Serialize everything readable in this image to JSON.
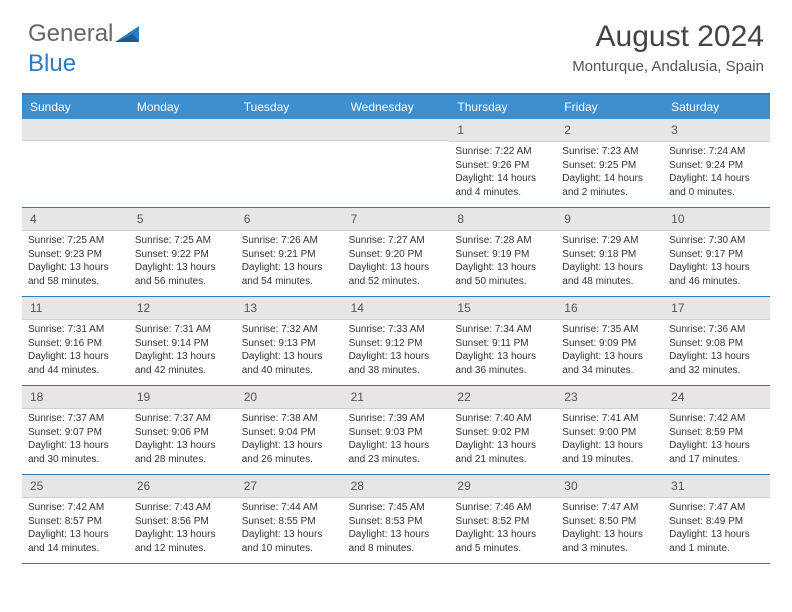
{
  "logo": {
    "text1": "General",
    "text2": "Blue"
  },
  "title": "August 2024",
  "location": "Monturque, Andalusia, Spain",
  "colors": {
    "header_bg": "#3d8fcf",
    "border": "#2f7bbf",
    "numrow_bg": "#e6e6e6",
    "text": "#333333"
  },
  "day_names": [
    "Sunday",
    "Monday",
    "Tuesday",
    "Wednesday",
    "Thursday",
    "Friday",
    "Saturday"
  ],
  "weeks": [
    [
      null,
      null,
      null,
      null,
      {
        "n": "1",
        "sr": "7:22 AM",
        "ss": "9:26 PM",
        "dl": "14 hours and 4 minutes."
      },
      {
        "n": "2",
        "sr": "7:23 AM",
        "ss": "9:25 PM",
        "dl": "14 hours and 2 minutes."
      },
      {
        "n": "3",
        "sr": "7:24 AM",
        "ss": "9:24 PM",
        "dl": "14 hours and 0 minutes."
      }
    ],
    [
      {
        "n": "4",
        "sr": "7:25 AM",
        "ss": "9:23 PM",
        "dl": "13 hours and 58 minutes."
      },
      {
        "n": "5",
        "sr": "7:25 AM",
        "ss": "9:22 PM",
        "dl": "13 hours and 56 minutes."
      },
      {
        "n": "6",
        "sr": "7:26 AM",
        "ss": "9:21 PM",
        "dl": "13 hours and 54 minutes."
      },
      {
        "n": "7",
        "sr": "7:27 AM",
        "ss": "9:20 PM",
        "dl": "13 hours and 52 minutes."
      },
      {
        "n": "8",
        "sr": "7:28 AM",
        "ss": "9:19 PM",
        "dl": "13 hours and 50 minutes."
      },
      {
        "n": "9",
        "sr": "7:29 AM",
        "ss": "9:18 PM",
        "dl": "13 hours and 48 minutes."
      },
      {
        "n": "10",
        "sr": "7:30 AM",
        "ss": "9:17 PM",
        "dl": "13 hours and 46 minutes."
      }
    ],
    [
      {
        "n": "11",
        "sr": "7:31 AM",
        "ss": "9:16 PM",
        "dl": "13 hours and 44 minutes."
      },
      {
        "n": "12",
        "sr": "7:31 AM",
        "ss": "9:14 PM",
        "dl": "13 hours and 42 minutes."
      },
      {
        "n": "13",
        "sr": "7:32 AM",
        "ss": "9:13 PM",
        "dl": "13 hours and 40 minutes."
      },
      {
        "n": "14",
        "sr": "7:33 AM",
        "ss": "9:12 PM",
        "dl": "13 hours and 38 minutes."
      },
      {
        "n": "15",
        "sr": "7:34 AM",
        "ss": "9:11 PM",
        "dl": "13 hours and 36 minutes."
      },
      {
        "n": "16",
        "sr": "7:35 AM",
        "ss": "9:09 PM",
        "dl": "13 hours and 34 minutes."
      },
      {
        "n": "17",
        "sr": "7:36 AM",
        "ss": "9:08 PM",
        "dl": "13 hours and 32 minutes."
      }
    ],
    [
      {
        "n": "18",
        "sr": "7:37 AM",
        "ss": "9:07 PM",
        "dl": "13 hours and 30 minutes."
      },
      {
        "n": "19",
        "sr": "7:37 AM",
        "ss": "9:06 PM",
        "dl": "13 hours and 28 minutes."
      },
      {
        "n": "20",
        "sr": "7:38 AM",
        "ss": "9:04 PM",
        "dl": "13 hours and 26 minutes."
      },
      {
        "n": "21",
        "sr": "7:39 AM",
        "ss": "9:03 PM",
        "dl": "13 hours and 23 minutes."
      },
      {
        "n": "22",
        "sr": "7:40 AM",
        "ss": "9:02 PM",
        "dl": "13 hours and 21 minutes."
      },
      {
        "n": "23",
        "sr": "7:41 AM",
        "ss": "9:00 PM",
        "dl": "13 hours and 19 minutes."
      },
      {
        "n": "24",
        "sr": "7:42 AM",
        "ss": "8:59 PM",
        "dl": "13 hours and 17 minutes."
      }
    ],
    [
      {
        "n": "25",
        "sr": "7:42 AM",
        "ss": "8:57 PM",
        "dl": "13 hours and 14 minutes."
      },
      {
        "n": "26",
        "sr": "7:43 AM",
        "ss": "8:56 PM",
        "dl": "13 hours and 12 minutes."
      },
      {
        "n": "27",
        "sr": "7:44 AM",
        "ss": "8:55 PM",
        "dl": "13 hours and 10 minutes."
      },
      {
        "n": "28",
        "sr": "7:45 AM",
        "ss": "8:53 PM",
        "dl": "13 hours and 8 minutes."
      },
      {
        "n": "29",
        "sr": "7:46 AM",
        "ss": "8:52 PM",
        "dl": "13 hours and 5 minutes."
      },
      {
        "n": "30",
        "sr": "7:47 AM",
        "ss": "8:50 PM",
        "dl": "13 hours and 3 minutes."
      },
      {
        "n": "31",
        "sr": "7:47 AM",
        "ss": "8:49 PM",
        "dl": "13 hours and 1 minute."
      }
    ]
  ],
  "labels": {
    "sunrise": "Sunrise: ",
    "sunset": "Sunset: ",
    "daylight": "Daylight: "
  }
}
